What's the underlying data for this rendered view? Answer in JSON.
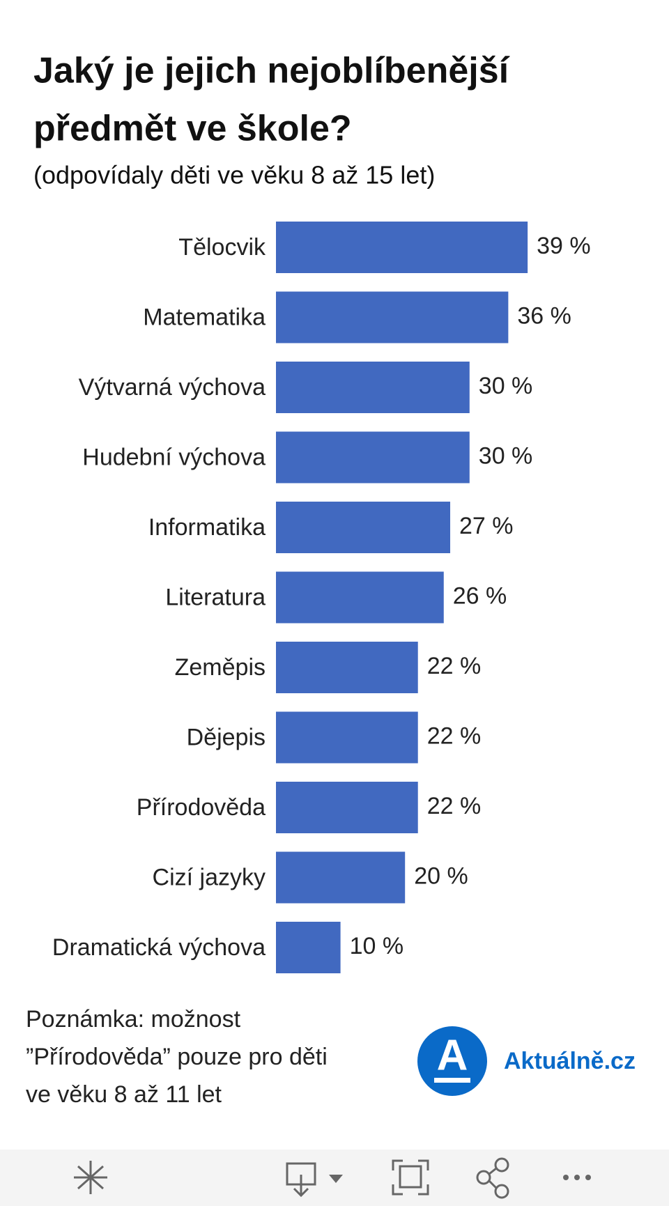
{
  "chart_data": {
    "type": "bar",
    "orientation": "horizontal",
    "title": [
      "Jaký je jejich nejoblíbenější",
      "předmět ve škole?"
    ],
    "subtitle": "(odpovídaly děti ve věku 8 až 15 let)",
    "categories": [
      "Tělocvik",
      "Matematika",
      "Výtvarná výchova",
      "Hudební výchova",
      "Informatika",
      "Literatura",
      "Zeměpis",
      "Dějepis",
      "Přírodověda",
      "Cizí jazyky",
      "Dramatická výchova"
    ],
    "values": [
      39,
      36,
      30,
      30,
      27,
      26,
      22,
      22,
      22,
      20,
      10
    ],
    "value_labels": [
      "39 %",
      "36 %",
      "30 %",
      "30 %",
      "27 %",
      "26 %",
      "22 %",
      "22 %",
      "22 %",
      "20 %",
      "10 %"
    ],
    "color": "#4169c0"
  },
  "note": [
    "Poznámka: možnost",
    "”Přírodověda” pouze pro děti",
    "ve věku 8 až 11 let"
  ],
  "logo": {
    "letter": "A",
    "text": "Aktuálně.cz"
  }
}
